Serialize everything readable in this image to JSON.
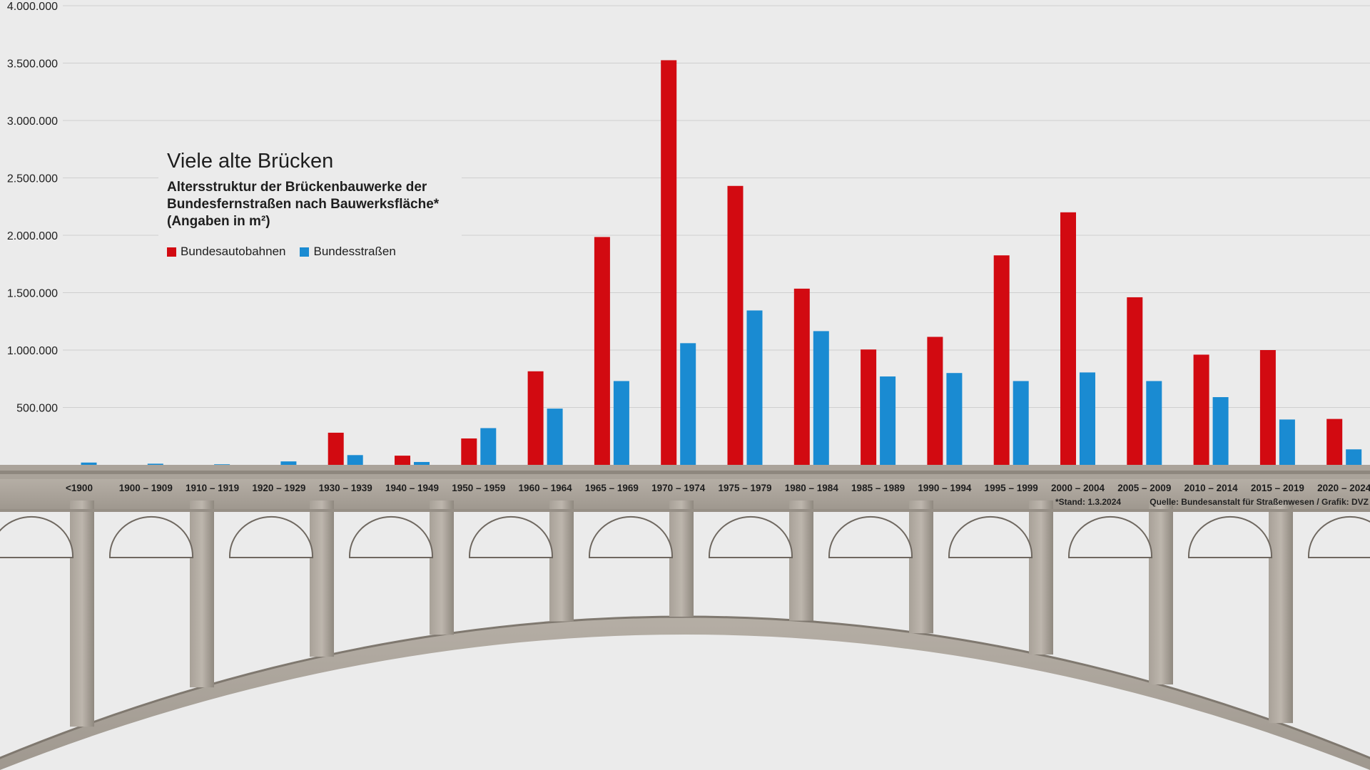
{
  "title": "Viele alte Brücken",
  "subtitle_lines": [
    "Altersstruktur der Brückenbauwerke der",
    "Bundesfernstraßen nach Bauwerksfläche*",
    "(Angaben in m²)"
  ],
  "legend": [
    {
      "name": "Bundesautobahnen",
      "color": "#d20a11"
    },
    {
      "name": "Bundesstraßen",
      "color": "#1a8bd2"
    }
  ],
  "footnote": "*Stand: 1.3.2024",
  "source": "Quelle: Bundesanstalt für Straßenwesen / Grafik: DVZ",
  "chart_data": {
    "type": "bar",
    "title": "Viele alte Brücken",
    "ylabel": "",
    "xlabel": "",
    "ylim": [
      0,
      4000000
    ],
    "yticks": [
      "500.000",
      "1.000.000",
      "1.500.000",
      "2.000.000",
      "2.500.000",
      "3.000.000",
      "3.500.000",
      "4.000.000"
    ],
    "ytick_values": [
      500000,
      1000000,
      1500000,
      2000000,
      2500000,
      3000000,
      3500000,
      4000000
    ],
    "grid": true,
    "categories": [
      "<1900",
      "1900 – 1909",
      "1910 – 1919",
      "1920 – 1929",
      "1930 – 1939",
      "1940 – 1949",
      "1950 – 1959",
      "1960 – 1964",
      "1965 – 1969",
      "1970 – 1974",
      "1975 – 1979",
      "1980 – 1984",
      "1985 – 1989",
      "1990 – 1994",
      "1995 – 1999",
      "2000 – 2004",
      "2005 – 2009",
      "2010 – 2014",
      "2015 – 2019",
      "2020 – 2024"
    ],
    "series": [
      {
        "name": "Bundesautobahnen",
        "color": "#d20a11",
        "values": [
          0,
          0,
          0,
          0,
          280000,
          80000,
          230000,
          815000,
          1985000,
          3525000,
          2430000,
          1535000,
          1005000,
          1115000,
          1825000,
          2200000,
          1460000,
          960000,
          1000000,
          400000
        ]
      },
      {
        "name": "Bundesstraßen",
        "color": "#1a8bd2",
        "values": [
          20000,
          10000,
          5000,
          30000,
          85000,
          25000,
          320000,
          490000,
          730000,
          1060000,
          1345000,
          1165000,
          770000,
          800000,
          730000,
          805000,
          730000,
          590000,
          395000,
          135000
        ]
      }
    ]
  }
}
